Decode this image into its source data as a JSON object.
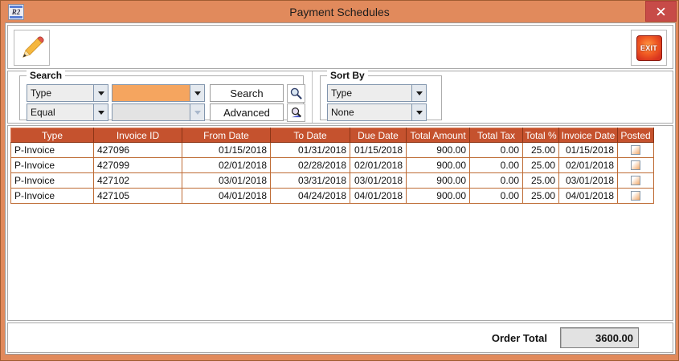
{
  "window": {
    "title": "Payment Schedules",
    "icon_text": "R2"
  },
  "toolbar": {
    "exit_label": "EXIT"
  },
  "search": {
    "group_label": "Search",
    "field_selector": "Type",
    "operator_selector": "Equal",
    "value": "",
    "secondary_value": "",
    "search_button": "Search",
    "advanced_button": "Advanced"
  },
  "sort_by": {
    "group_label": "Sort By",
    "primary": "Type",
    "secondary": "None"
  },
  "table": {
    "columns": [
      "Type",
      "Invoice ID",
      "From Date",
      "To Date",
      "Due Date",
      "Total Amount",
      "Total Tax",
      "Total %",
      "Invoice Date",
      "Posted"
    ],
    "rows": [
      [
        "P-Invoice",
        "427096",
        "01/15/2018",
        "01/31/2018",
        "01/15/2018",
        "900.00",
        "0.00",
        "25.00",
        "01/15/2018"
      ],
      [
        "P-Invoice",
        "427099",
        "02/01/2018",
        "02/28/2018",
        "02/01/2018",
        "900.00",
        "0.00",
        "25.00",
        "02/01/2018"
      ],
      [
        "P-Invoice",
        "427102",
        "03/01/2018",
        "03/31/2018",
        "03/01/2018",
        "900.00",
        "0.00",
        "25.00",
        "03/01/2018"
      ],
      [
        "P-Invoice",
        "427105",
        "04/01/2018",
        "04/24/2018",
        "04/01/2018",
        "900.00",
        "0.00",
        "25.00",
        "04/01/2018"
      ]
    ],
    "posted": [
      false,
      false,
      false,
      false
    ]
  },
  "footer": {
    "label": "Order Total",
    "value": "3600.00"
  },
  "colors": {
    "titlebar": "#E18A5C",
    "table_header": "#C5522E",
    "grid_line": "#BE6B34",
    "accent_field": "#F5A55F",
    "close_button": "#C74B48",
    "exit_red": "#D8341F"
  }
}
